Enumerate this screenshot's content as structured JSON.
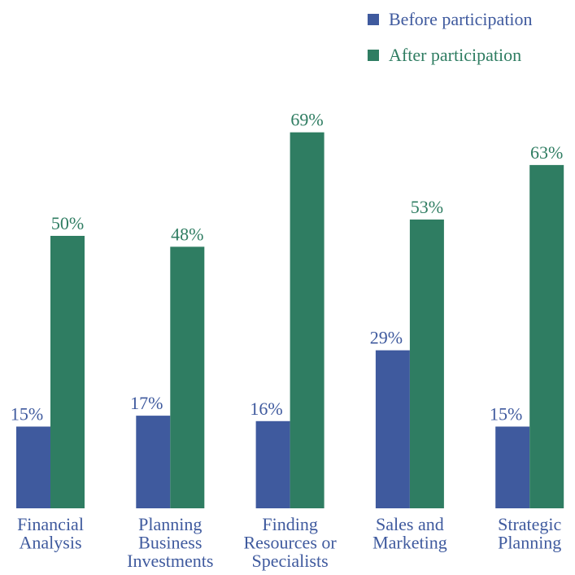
{
  "chart_data": {
    "type": "bar",
    "categories": [
      "Financial\nAnalysis",
      "Planning\nBusiness\nInvestments",
      "Finding\nResources or\nSpecialists",
      "Sales and\nMarketing",
      "Strategic\nPlanning"
    ],
    "series": [
      {
        "name": "Before participation",
        "color": "#3f5a9e",
        "values": [
          15,
          17,
          16,
          29,
          15
        ],
        "value_labels": [
          "15%",
          "17%",
          "16%",
          "29%",
          "15%"
        ]
      },
      {
        "name": "After participation",
        "color": "#2f7d62",
        "values": [
          50,
          48,
          69,
          53,
          63
        ],
        "value_labels": [
          "50%",
          "48%",
          "69%",
          "53%",
          "63%"
        ]
      }
    ],
    "ylim": [
      0,
      70
    ],
    "legend": "top-right"
  }
}
